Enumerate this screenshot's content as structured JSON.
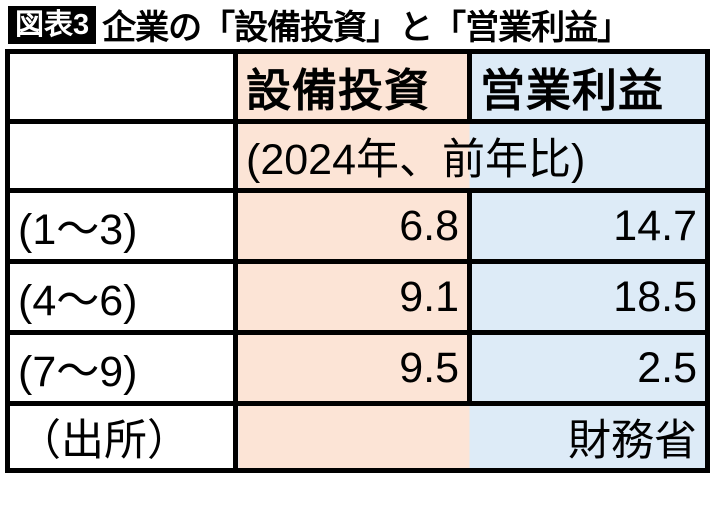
{
  "title": {
    "badge": "図表3",
    "text": "企業の「設備投資」と「営業利益」"
  },
  "table": {
    "columns": [
      "",
      "設備投資",
      "営業利益"
    ],
    "subheader": "(2024年、前年比)",
    "rows": [
      {
        "label": "(1～3)",
        "capex": "6.8",
        "profit": "14.7"
      },
      {
        "label": "(4～6)",
        "capex": "9.1",
        "profit": "18.5"
      },
      {
        "label": "(7～9)",
        "capex": "9.5",
        "profit": "2.5"
      }
    ],
    "source_label": "（出所）",
    "source_value": "財務省"
  },
  "colors": {
    "capex_bg": "#FCE4D6",
    "profit_bg": "#DDEBF7",
    "border": "#000000",
    "badge_bg": "#000000",
    "badge_text": "#ffffff"
  },
  "chart_data": {
    "type": "table",
    "title": "図表3 企業の「設備投資」と「営業利益」",
    "columns": [
      "",
      "設備投資",
      "営業利益"
    ],
    "note": "(2024年、前年比)",
    "categories": [
      "(1～3)",
      "(4～6)",
      "(7～9)"
    ],
    "series": [
      {
        "name": "設備投資",
        "values": [
          6.8,
          9.1,
          9.5
        ]
      },
      {
        "name": "営業利益",
        "values": [
          14.7,
          18.5,
          2.5
        ]
      }
    ],
    "source": "（出所）財務省"
  }
}
